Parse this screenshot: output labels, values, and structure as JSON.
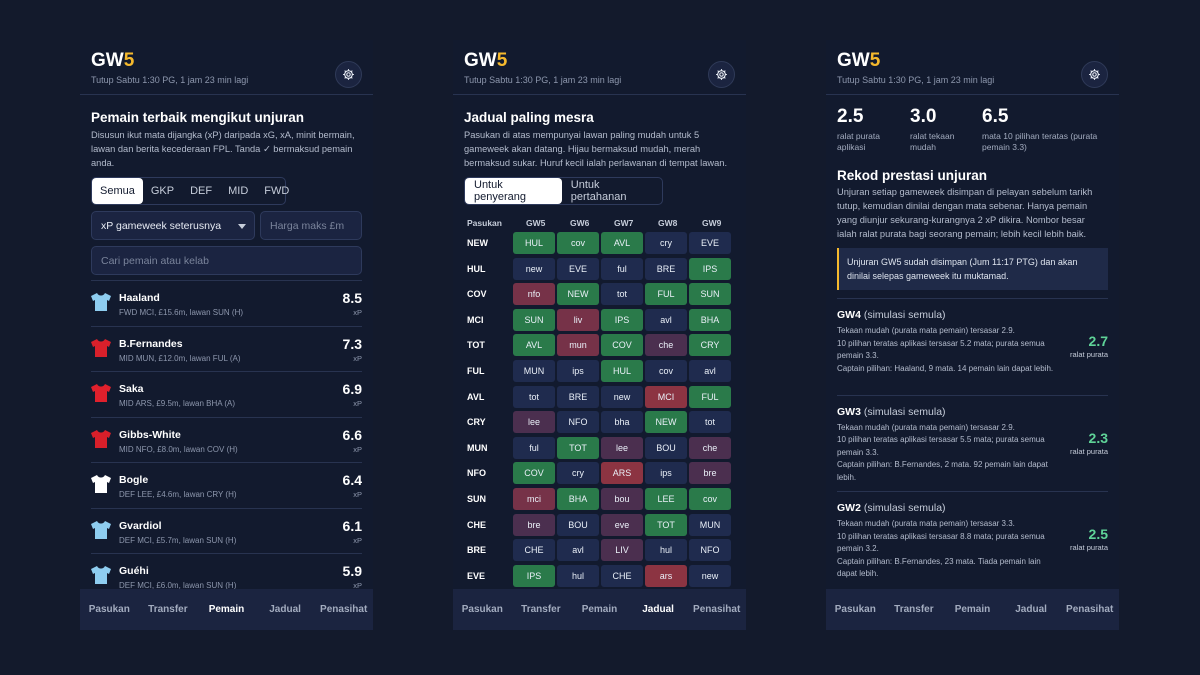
{
  "gw_label": "GW",
  "gw_number": "5",
  "deadline": "Tutup Sabtu 1:30 PG, 1 jam 23 min lagi",
  "nav": [
    "Pasukan",
    "Transfer",
    "Pemain",
    "Jadual",
    "Penasihat"
  ],
  "accent": "#f5b92d",
  "panel1": {
    "title": "Pemain terbaik mengikut unjuran",
    "description": "Disusun ikut mata dijangka (xP) daripada xG, xA, minit bermain, lawan dan berita kecederaan FPL. Tanda ✓ bermaksud pemain anda.",
    "filters": [
      "Semua",
      "GKP",
      "DEF",
      "MID",
      "FWD"
    ],
    "sort_select": "xP gameweek seterusnya",
    "price_placeholder": "Harga maks £m",
    "search_placeholder": "Cari pemain atau kelab",
    "players": [
      {
        "name": "Haaland",
        "info": "FWD MCI, £15.6m, lawan SUN (H)",
        "xp": "8.5",
        "unit": "xP",
        "shirt": "#8ecdf0"
      },
      {
        "name": "B.Fernandes",
        "info": "MID MUN, £12.0m, lawan FUL (A)",
        "xp": "7.3",
        "unit": "xP",
        "shirt": "#d8202b"
      },
      {
        "name": "Saka",
        "info": "MID ARS, £9.5m, lawan BHA (A)",
        "xp": "6.9",
        "unit": "xP",
        "shirt": "#e0202c"
      },
      {
        "name": "Gibbs-White",
        "info": "MID NFO, £8.0m, lawan COV (H)",
        "xp": "6.6",
        "unit": "xP",
        "shirt": "#d81f2a"
      },
      {
        "name": "Bogle",
        "info": "DEF LEE, £4.6m, lawan CRY (H)",
        "xp": "6.4",
        "unit": "xP",
        "shirt": "#ffffff"
      },
      {
        "name": "Gvardiol",
        "info": "DEF MCI, £5.7m, lawan SUN (H)",
        "xp": "6.1",
        "unit": "xP",
        "shirt": "#8ecdf0"
      },
      {
        "name": "Guéhi",
        "info": "DEF MCI, £6.0m, lawan SUN (H)",
        "xp": "5.9",
        "unit": "xP",
        "shirt": "#8ecdf0"
      }
    ]
  },
  "panel2": {
    "title": "Jadual paling mesra",
    "description": "Pasukan di atas mempunyai lawan paling mudah untuk 5 gameweek akan datang. Hijau bermaksud mudah, merah bermaksud sukar. Huruf kecil ialah perlawanan di tempat lawan.",
    "tabs": [
      "Untuk penyerang",
      "Untuk pertahanan"
    ],
    "team_header": "Pasukan",
    "gw_headers": [
      "GW5",
      "GW6",
      "GW7",
      "GW8",
      "GW9"
    ],
    "rows": [
      {
        "team": "NEW",
        "cells": [
          [
            "HUL",
            "easy"
          ],
          [
            "cov",
            "easy"
          ],
          [
            "AVL",
            "easy"
          ],
          [
            "cry",
            "mid"
          ],
          [
            "EVE",
            "mid"
          ]
        ]
      },
      {
        "team": "HUL",
        "cells": [
          [
            "new",
            "mid"
          ],
          [
            "EVE",
            "mid"
          ],
          [
            "ful",
            "mid"
          ],
          [
            "BRE",
            "mid"
          ],
          [
            "IPS",
            "easy"
          ]
        ]
      },
      {
        "team": "COV",
        "cells": [
          [
            "nfo",
            "hard"
          ],
          [
            "NEW",
            "easy"
          ],
          [
            "tot",
            "mid"
          ],
          [
            "FUL",
            "easy"
          ],
          [
            "SUN",
            "easy"
          ]
        ]
      },
      {
        "team": "MCI",
        "cells": [
          [
            "SUN",
            "easy"
          ],
          [
            "liv",
            "hard"
          ],
          [
            "IPS",
            "easy"
          ],
          [
            "avl",
            "mid"
          ],
          [
            "BHA",
            "easy"
          ]
        ]
      },
      {
        "team": "TOT",
        "cells": [
          [
            "AVL",
            "easy"
          ],
          [
            "mun",
            "hard"
          ],
          [
            "COV",
            "easy"
          ],
          [
            "che",
            "mod"
          ],
          [
            "CRY",
            "easy"
          ]
        ]
      },
      {
        "team": "FUL",
        "cells": [
          [
            "MUN",
            "mid"
          ],
          [
            "ips",
            "mid"
          ],
          [
            "HUL",
            "easy"
          ],
          [
            "cov",
            "mid"
          ],
          [
            "avl",
            "mid"
          ]
        ]
      },
      {
        "team": "AVL",
        "cells": [
          [
            "tot",
            "mid"
          ],
          [
            "BRE",
            "mid"
          ],
          [
            "new",
            "mid"
          ],
          [
            "MCI",
            "vhard"
          ],
          [
            "FUL",
            "easy"
          ]
        ]
      },
      {
        "team": "CRY",
        "cells": [
          [
            "lee",
            "mod"
          ],
          [
            "NFO",
            "mid"
          ],
          [
            "bha",
            "mid"
          ],
          [
            "NEW",
            "easy"
          ],
          [
            "tot",
            "mid"
          ]
        ]
      },
      {
        "team": "MUN",
        "cells": [
          [
            "ful",
            "mid"
          ],
          [
            "TOT",
            "easy"
          ],
          [
            "lee",
            "mod"
          ],
          [
            "BOU",
            "mid"
          ],
          [
            "che",
            "mod"
          ]
        ]
      },
      {
        "team": "NFO",
        "cells": [
          [
            "COV",
            "easy"
          ],
          [
            "cry",
            "mid"
          ],
          [
            "ARS",
            "vhard"
          ],
          [
            "ips",
            "mid"
          ],
          [
            "bre",
            "mod"
          ]
        ]
      },
      {
        "team": "SUN",
        "cells": [
          [
            "mci",
            "hard"
          ],
          [
            "BHA",
            "easy"
          ],
          [
            "bou",
            "mod"
          ],
          [
            "LEE",
            "easy"
          ],
          [
            "cov",
            "easy"
          ]
        ]
      },
      {
        "team": "CHE",
        "cells": [
          [
            "bre",
            "mod"
          ],
          [
            "BOU",
            "mid"
          ],
          [
            "eve",
            "mod"
          ],
          [
            "TOT",
            "easy"
          ],
          [
            "MUN",
            "mid"
          ]
        ]
      },
      {
        "team": "BRE",
        "cells": [
          [
            "CHE",
            "mid"
          ],
          [
            "avl",
            "mid"
          ],
          [
            "LIV",
            "mod"
          ],
          [
            "hul",
            "mid"
          ],
          [
            "NFO",
            "mid"
          ]
        ]
      },
      {
        "team": "EVE",
        "cells": [
          [
            "IPS",
            "easy"
          ],
          [
            "hul",
            "mid"
          ],
          [
            "CHE",
            "mid"
          ],
          [
            "ars",
            "vhard"
          ],
          [
            "new",
            "mid"
          ]
        ]
      }
    ]
  },
  "panel3": {
    "stats": [
      {
        "value": "2.5",
        "label": "ralat purata aplikasi"
      },
      {
        "value": "3.0",
        "label": "ralat tekaan mudah"
      },
      {
        "value": "6.5",
        "label": "mata 10 pilihan teratas (purata pemain 3.3)"
      }
    ],
    "title": "Rekod prestasi unjuran",
    "description": "Unjuran setiap gameweek disimpan di pelayan sebelum tarikh tutup, kemudian dinilai dengan mata sebenar. Hanya pemain yang diunjur sekurang-kurangnya 2 xP dikira. Nombor besar ialah ralat purata bagi seorang pemain; lebih kecil lebih baik.",
    "notice": "Unjuran GW5 sudah disimpan (Jum 11:17 PTG) dan akan dinilai selepas gameweek itu muktamad.",
    "history": [
      {
        "gw": "GW4",
        "note": "(simulasi semula)",
        "lines": [
          "Tekaan mudah (purata mata pemain) tersasar 2.9.",
          "10 pilihan teratas aplikasi tersasar 5.2 mata; purata semua pemain 3.3.",
          "Captain pilihan: Haaland, 9 mata. 14 pemain lain dapat lebih."
        ],
        "value": "2.7",
        "value_label": "ralat purata"
      },
      {
        "gw": "GW3",
        "note": "(simulasi semula)",
        "lines": [
          "Tekaan mudah (purata mata pemain) tersasar 2.9.",
          "10 pilihan teratas aplikasi tersasar 5.5 mata; purata semua pemain 3.3.",
          "Captain pilihan: B.Fernandes, 2 mata. 92 pemain lain dapat lebih."
        ],
        "value": "2.3",
        "value_label": "ralat purata"
      },
      {
        "gw": "GW2",
        "note": "(simulasi semula)",
        "lines": [
          "Tekaan mudah (purata mata pemain) tersasar 3.3.",
          "10 pilihan teratas aplikasi tersasar 8.8 mata; purata semua pemain 3.2.",
          "Captain pilihan: B.Fernandes, 23 mata. Tiada pemain lain dapat lebih."
        ],
        "value": "2.5",
        "value_label": "ralat purata"
      }
    ]
  }
}
